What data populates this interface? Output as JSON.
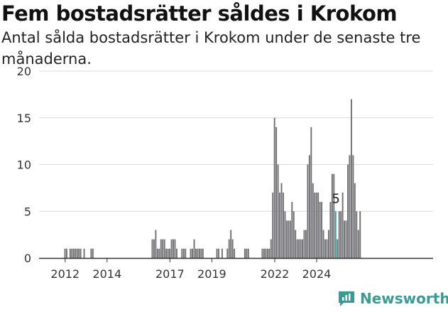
{
  "header": {
    "title": "Fem bostadsrätter såldes i Krokom",
    "subtitle": "Antal sålda bostadsrätter i Krokom under de senaste tre månaderna."
  },
  "brand": {
    "name": "Newsworthy",
    "icon": "newsworthy-logo-icon",
    "color": "#3a9b94"
  },
  "colors": {
    "bar": "#6e6e73",
    "highlight": "#2aa198",
    "grid": "#d9d9d9",
    "axis": "#333333"
  },
  "chart_data": {
    "type": "bar",
    "x_unit": "month",
    "ylim": [
      0,
      20
    ],
    "yticks": [
      0,
      5,
      10,
      15,
      20
    ],
    "xticks": [
      "2012",
      "2014",
      "2017",
      "2019",
      "2022",
      "2024"
    ],
    "grid": true,
    "annotation": {
      "label": "5",
      "month": "2024-12"
    },
    "series": [
      {
        "start": "2011-01",
        "values": [
          0,
          0,
          0,
          0,
          0,
          0,
          0,
          0,
          0,
          0,
          0,
          0,
          1,
          1,
          0,
          1,
          1,
          1,
          1,
          1,
          1,
          1,
          0,
          1,
          0,
          0,
          0,
          1,
          1,
          0,
          0,
          0,
          0,
          0,
          0,
          0,
          0,
          0,
          0,
          0,
          0,
          0,
          0,
          0,
          0,
          0,
          0,
          0,
          0,
          0,
          0,
          0,
          0,
          0,
          0,
          0,
          0,
          0,
          0,
          0,
          0,
          0,
          2,
          2,
          3,
          1,
          1,
          2,
          2,
          2,
          1,
          1,
          1,
          2,
          2,
          2,
          1,
          0,
          0,
          1,
          1,
          1,
          0,
          0,
          1,
          1,
          2,
          1,
          1,
          1,
          1,
          1,
          0,
          0,
          0,
          0,
          0,
          0,
          0,
          1,
          1,
          0,
          1,
          0,
          0,
          1,
          2,
          3,
          2,
          1,
          0,
          0,
          0,
          0,
          0,
          1,
          1,
          1,
          0,
          0,
          0,
          0,
          0,
          0,
          0,
          1,
          1,
          1,
          1,
          1,
          2,
          7,
          15,
          14,
          10,
          7,
          8,
          7,
          5,
          4,
          4,
          4,
          6,
          5,
          3,
          2,
          2,
          2,
          2,
          3,
          3,
          10,
          11,
          14,
          8,
          7,
          7,
          7,
          6,
          6,
          3,
          2,
          2,
          3,
          6,
          9,
          9,
          5,
          2,
          5,
          5,
          7,
          4,
          4,
          10,
          11,
          17,
          11,
          8,
          5,
          3,
          5
        ]
      }
    ]
  }
}
